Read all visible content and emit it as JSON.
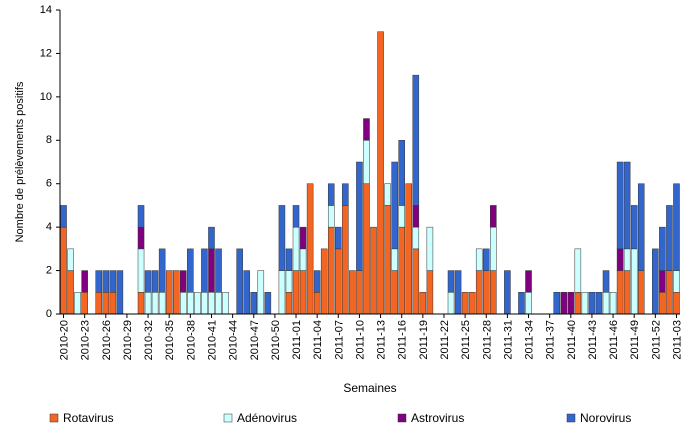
{
  "chart_data": {
    "type": "stacked_bar",
    "ylabel": "Nombre de prélèvements positifs",
    "xlabel": "Semaines",
    "categories": [
      "2010-20",
      null,
      null,
      "2010-23",
      null,
      null,
      "2010-26",
      null,
      null,
      "2010-29",
      null,
      null,
      "2010-32",
      null,
      null,
      "2010-35",
      null,
      null,
      "2010-38",
      null,
      null,
      "2010-41",
      null,
      null,
      "2010-44",
      null,
      null,
      "2010-47",
      null,
      null,
      "2010-50",
      null,
      null,
      "2011-01",
      null,
      null,
      "2011-04",
      null,
      null,
      "2011-07",
      null,
      null,
      "2011-10",
      null,
      null,
      "2011-13",
      null,
      null,
      "2011-16",
      null,
      null,
      "2011-19",
      null,
      null,
      "2011-22",
      null,
      null,
      "2011-25",
      null,
      null,
      "2011-28",
      null,
      null,
      "2011-31",
      null,
      null,
      "2011-34",
      null,
      null,
      "2011-37",
      null,
      null,
      "2011-40",
      null,
      null,
      "2011-43",
      null,
      null,
      "2011-46",
      null,
      null,
      "2011-49",
      null,
      null,
      "2011-52",
      null,
      null,
      "2011-03"
    ],
    "series": [
      {
        "name": "Rotavirus",
        "color": "#f26522",
        "values": [
          4,
          2,
          0,
          1,
          0,
          1,
          1,
          1,
          0,
          0,
          0,
          1,
          0,
          0,
          0,
          2,
          2,
          0,
          0,
          0,
          0,
          0,
          0,
          0,
          0,
          0,
          0,
          0,
          0,
          0,
          0,
          0,
          1,
          2,
          2,
          6,
          1,
          3,
          4,
          3,
          5,
          2,
          2,
          6,
          4,
          13,
          5,
          2,
          4,
          6,
          3,
          1,
          2,
          0,
          0,
          0,
          0,
          1,
          1,
          2,
          2,
          2,
          0,
          0,
          0,
          0,
          0,
          0,
          0,
          0,
          0,
          0,
          0,
          1,
          0,
          0,
          0,
          0,
          0,
          2,
          2,
          0,
          2,
          0,
          0,
          1,
          2,
          1
        ]
      },
      {
        "name": "Adénovirus",
        "color": "#ccffff",
        "values": [
          0,
          1,
          1,
          0,
          0,
          0,
          0,
          0,
          0,
          0,
          0,
          2,
          1,
          1,
          1,
          0,
          0,
          1,
          1,
          1,
          1,
          1,
          1,
          1,
          0,
          0,
          0,
          0,
          2,
          0,
          0,
          2,
          1,
          2,
          1,
          0,
          0,
          0,
          1,
          0,
          0,
          0,
          0,
          2,
          0,
          0,
          1,
          1,
          1,
          0,
          1,
          0,
          2,
          0,
          0,
          1,
          0,
          0,
          0,
          1,
          0,
          2,
          0,
          0,
          0,
          0,
          1,
          0,
          0,
          0,
          0,
          0,
          0,
          2,
          1,
          0,
          0,
          1,
          1,
          0,
          1,
          3,
          0,
          0,
          0,
          0,
          0,
          1
        ]
      },
      {
        "name": "Astrovirus",
        "color": "#800080",
        "values": [
          0,
          0,
          0,
          1,
          0,
          0,
          0,
          0,
          0,
          0,
          0,
          1,
          0,
          0,
          0,
          0,
          0,
          1,
          0,
          0,
          0,
          2,
          0,
          0,
          0,
          0,
          0,
          0,
          0,
          0,
          0,
          0,
          0,
          0,
          1,
          0,
          0,
          0,
          0,
          0,
          0,
          0,
          0,
          1,
          0,
          0,
          0,
          0,
          0,
          0,
          1,
          0,
          0,
          0,
          0,
          0,
          0,
          0,
          0,
          0,
          0,
          1,
          0,
          0,
          0,
          0,
          1,
          0,
          0,
          0,
          0,
          1,
          1,
          0,
          0,
          0,
          0,
          0,
          0,
          1,
          0,
          0,
          0,
          0,
          0,
          1,
          0,
          0
        ]
      },
      {
        "name": "Norovirus",
        "color": "#3366cc",
        "values": [
          1,
          0,
          0,
          0,
          0,
          1,
          1,
          1,
          2,
          0,
          0,
          1,
          1,
          1,
          2,
          0,
          0,
          0,
          2,
          0,
          2,
          1,
          2,
          0,
          0,
          3,
          2,
          1,
          0,
          1,
          0,
          3,
          1,
          1,
          0,
          0,
          1,
          0,
          1,
          1,
          1,
          0,
          5,
          0,
          0,
          0,
          0,
          4,
          3,
          0,
          6,
          0,
          0,
          0,
          0,
          1,
          2,
          0,
          0,
          0,
          1,
          0,
          0,
          2,
          0,
          1,
          0,
          0,
          0,
          0,
          1,
          0,
          0,
          0,
          0,
          1,
          1,
          1,
          0,
          4,
          4,
          2,
          4,
          0,
          3,
          2,
          3,
          4
        ]
      }
    ],
    "ylim": [
      0,
      14
    ],
    "yticks": [
      0,
      2,
      4,
      6,
      8,
      10,
      12,
      14
    ],
    "grid": false,
    "legend": "bottom"
  }
}
